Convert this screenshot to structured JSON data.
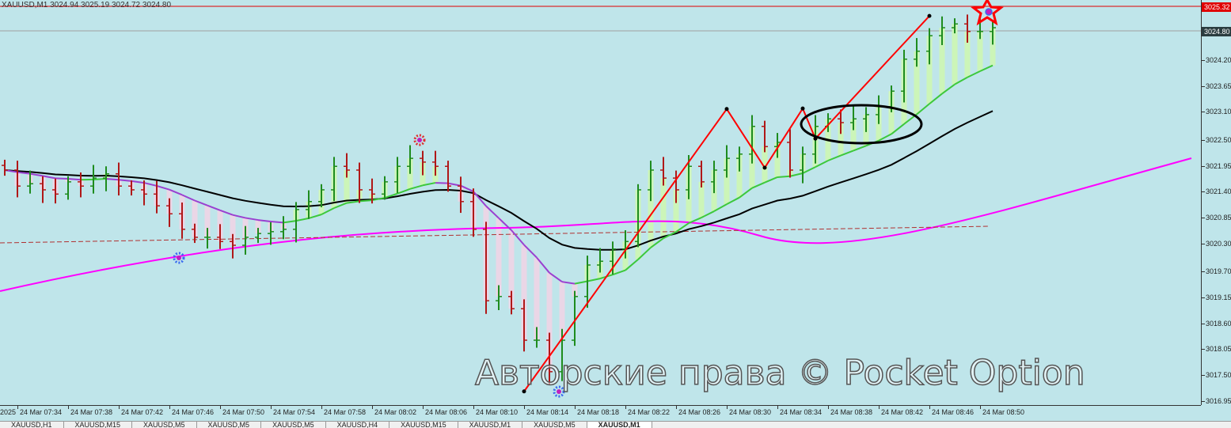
{
  "window": {
    "title": "XAUUSD,M1 3024.94 3025.19 3024.72 3024.80"
  },
  "tabs": [
    {
      "label": "XAUUSD,H1"
    },
    {
      "label": "XAUUSD,M15"
    },
    {
      "label": "XAUUSD,M5"
    },
    {
      "label": "XAUUSD,M5"
    },
    {
      "label": "XAUUSD,M5"
    },
    {
      "label": "XAUUSD,H4"
    },
    {
      "label": "XAUUSD,M15"
    },
    {
      "label": "XAUUSD,M1"
    },
    {
      "label": "XAUUSD,M5"
    },
    {
      "label": "XAUUSD,M1",
      "active": true
    }
  ],
  "watermark": "Авторские права © Pocket Option",
  "chart_data": {
    "type": "ohlc-bar",
    "symbol": "XAUUSD",
    "timeframe": "M1",
    "start_time": "24 Mar 07:33",
    "closes": [
      3021.86,
      3021.52,
      3021.57,
      3021.44,
      3021.35,
      3021.61,
      3021.52,
      3021.69,
      3021.78,
      3021.52,
      3021.44,
      3021.35,
      3021.1,
      3020.93,
      3020.6,
      3020.43,
      3020.43,
      3020.34,
      3020.26,
      3020.43,
      3020.51,
      3020.55,
      3020.6,
      3021.02,
      3021.19,
      3021.44,
      3021.94,
      3021.86,
      3021.44,
      3021.35,
      3021.61,
      3021.94,
      3022.11,
      3022.03,
      3021.94,
      3021.52,
      3021.19,
      3020.6,
      3019.08,
      3019.17,
      3018.91,
      3018.24,
      3018.24,
      3017.57,
      3018.24,
      3019.17,
      3019.84,
      3019.92,
      3020.18,
      3020.34,
      3021.44,
      3021.86,
      3021.69,
      3021.44,
      3021.94,
      3021.61,
      3021.86,
      3022.11,
      3022.2,
      3022.79,
      3022.36,
      3022.45,
      3021.86,
      3022.2,
      3022.79,
      3022.95,
      3022.87,
      3022.95,
      3023.04,
      3023.21,
      3023.54,
      3024.22,
      3024.39,
      3024.72,
      3024.89,
      3024.97,
      3024.81,
      3024.81,
      3024.89
    ],
    "zigzag": [
      {
        "t": "08:14",
        "p": 3017.15
      },
      {
        "t": "08:30",
        "p": 3023.16
      },
      {
        "t": "08:33",
        "p": 3021.91
      },
      {
        "t": "08:36",
        "p": 3023.17
      },
      {
        "t": "08:37",
        "p": 3022.53
      },
      {
        "t": "08:46",
        "p": 3025.14
      }
    ],
    "y_ticks": [
      "3024.20",
      "3023.65",
      "3023.10",
      "3022.50",
      "3021.95",
      "3021.40",
      "3020.85",
      "3020.30",
      "3019.70",
      "3019.15",
      "3018.60",
      "3018.05",
      "3017.50",
      "3016.95"
    ],
    "x_ticks": [
      "2025",
      "24 Mar 07:34",
      "24 Mar 07:38",
      "24 Mar 07:42",
      "24 Mar 07:46",
      "24 Mar 07:50",
      "24 Mar 07:54",
      "24 Mar 07:58",
      "24 Mar 08:02",
      "24 Mar 08:06",
      "24 Mar 08:10",
      "24 Mar 08:14",
      "24 Mar 08:18",
      "24 Mar 08:22",
      "24 Mar 08:26",
      "24 Mar 08:30",
      "24 Mar 08:34",
      "24 Mar 08:38",
      "24 Mar 08:42",
      "24 Mar 08:46",
      "24 Mar 08:50"
    ],
    "ask_label": "3025.32",
    "bid_label": "3024.80",
    "ylim": [
      3016.8,
      3025.5
    ],
    "colors": {
      "bg": "#bfe5ea",
      "up": "#1e8c1e",
      "down": "#b01818",
      "zigzag": "#ff0000",
      "ma_fast": "#9a40d0",
      "ma_fast_up": "#3cc83c",
      "ma_mid": "#000000",
      "ma_slow": "#ff00ff",
      "hist_up": "#ccf5b8",
      "hist_down": "#ead6e6"
    }
  }
}
